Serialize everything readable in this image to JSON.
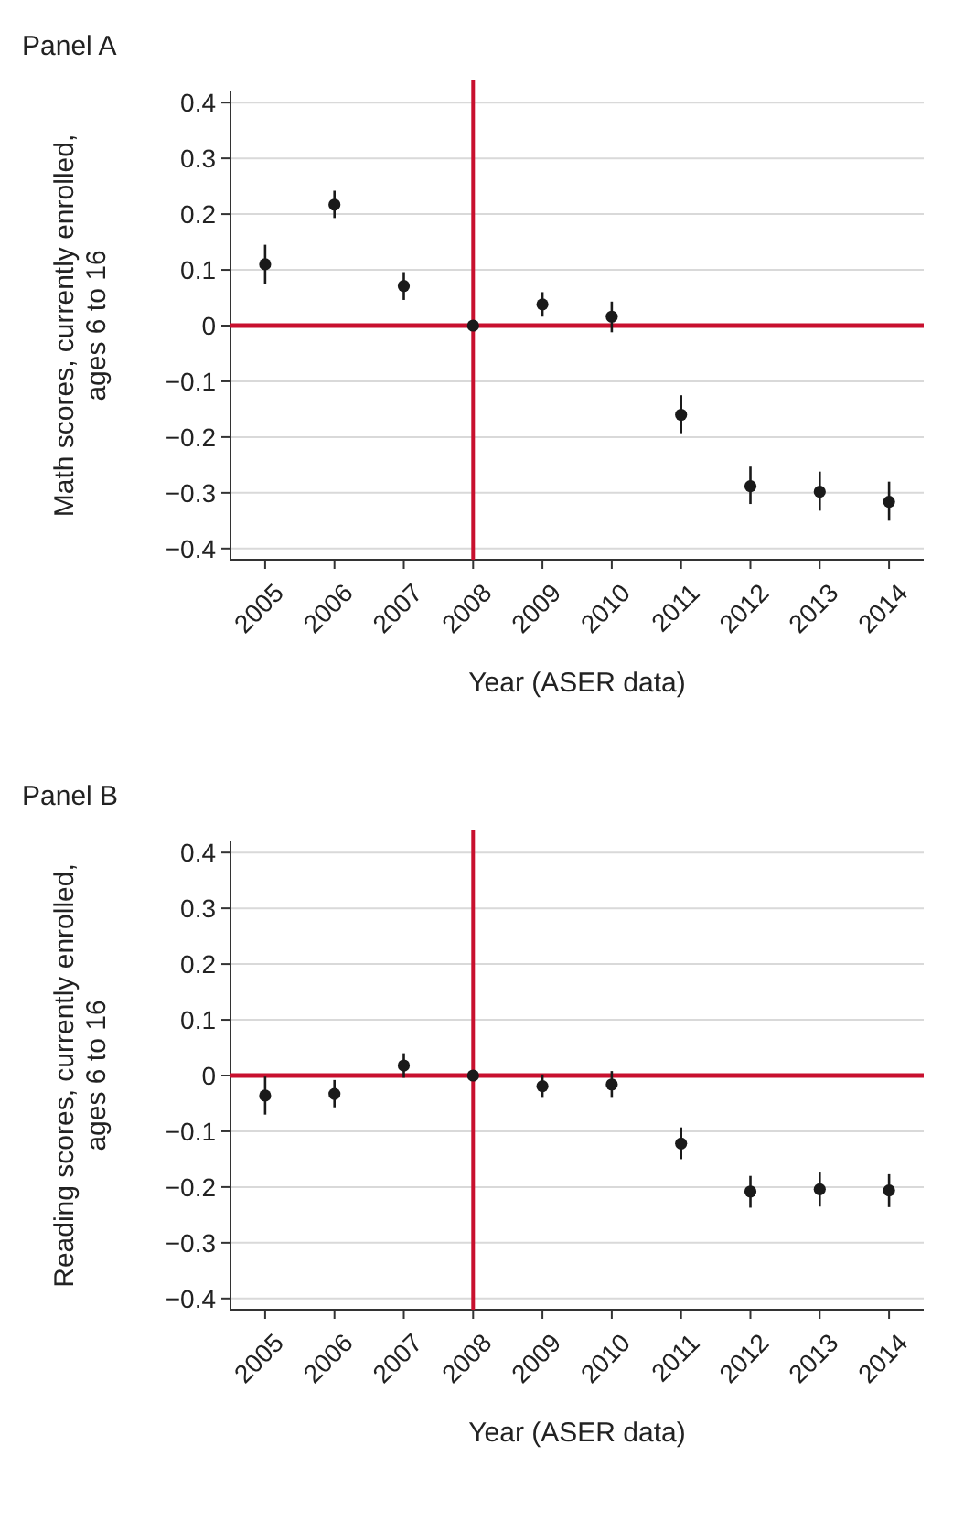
{
  "chart_data": [
    {
      "type": "scatter",
      "title": "Panel A",
      "xlabel": "Year (ASER data)",
      "ylabel": "Math scores, currently enrolled, ages 6 to 16",
      "categories": [
        "2005",
        "2006",
        "2007",
        "2008",
        "2009",
        "2010",
        "2011",
        "2012",
        "2013",
        "2014"
      ],
      "series": [
        {
          "color": "#1a1a1a",
          "values": [
            0.11,
            0.217,
            0.071,
            0,
            0.038,
            0.016,
            -0.16,
            -0.288,
            -0.298,
            -0.316
          ],
          "errors": [
            [
              0.075,
              0.145
            ],
            [
              0.193,
              0.242
            ],
            [
              0.046,
              0.096
            ],
            null,
            [
              0.016,
              0.06
            ],
            [
              -0.012,
              0.043
            ],
            [
              -0.193,
              -0.125
            ],
            [
              -0.32,
              -0.253
            ],
            [
              -0.332,
              -0.262
            ],
            [
              -0.35,
              -0.28
            ]
          ]
        }
      ],
      "ylim": [
        -0.42,
        0.42
      ],
      "yticks": [
        0.4,
        0.3,
        0.2,
        0.1,
        0,
        {
          "value": -0.1,
          "label": "−0.1"
        },
        {
          "value": -0.2,
          "label": "−0.2"
        },
        {
          "value": -0.3,
          "label": "−0.3"
        },
        {
          "value": -0.4,
          "label": "−0.4"
        }
      ],
      "grid": "y",
      "marker": "circle",
      "ref_lines": [
        {
          "axis": "y",
          "value": 0,
          "color": "#c8102e"
        },
        {
          "axis": "x",
          "value": "2008",
          "color": "#c8102e"
        }
      ]
    },
    {
      "type": "scatter",
      "title": "Panel B",
      "xlabel": "Year (ASER data)",
      "ylabel": "Reading scores, currently enrolled, ages 6 to 16",
      "categories": [
        "2005",
        "2006",
        "2007",
        "2008",
        "2009",
        "2010",
        "2011",
        "2012",
        "2013",
        "2014"
      ],
      "series": [
        {
          "color": "#1a1a1a",
          "values": [
            -0.036,
            -0.033,
            0.018,
            0,
            -0.019,
            -0.016,
            -0.122,
            -0.208,
            -0.204,
            -0.206
          ],
          "errors": [
            [
              -0.07,
              -0.002
            ],
            [
              -0.057,
              -0.008
            ],
            [
              -0.004,
              0.04
            ],
            null,
            [
              -0.04,
              0.002
            ],
            [
              -0.04,
              0.008
            ],
            [
              -0.15,
              -0.093
            ],
            [
              -0.237,
              -0.18
            ],
            [
              -0.235,
              -0.174
            ],
            [
              -0.236,
              -0.177
            ]
          ]
        }
      ],
      "ylim": [
        -0.42,
        0.42
      ],
      "yticks": [
        0.4,
        0.3,
        0.2,
        0.1,
        0,
        {
          "value": -0.1,
          "label": "−0.1"
        },
        {
          "value": -0.2,
          "label": "−0.2"
        },
        {
          "value": -0.3,
          "label": "−0.3"
        },
        {
          "value": -0.4,
          "label": "−0.4"
        }
      ],
      "grid": "y",
      "marker": "circle",
      "ref_lines": [
        {
          "axis": "y",
          "value": 0,
          "color": "#c8102e"
        },
        {
          "axis": "x",
          "value": "2008",
          "color": "#c8102e"
        }
      ]
    }
  ]
}
